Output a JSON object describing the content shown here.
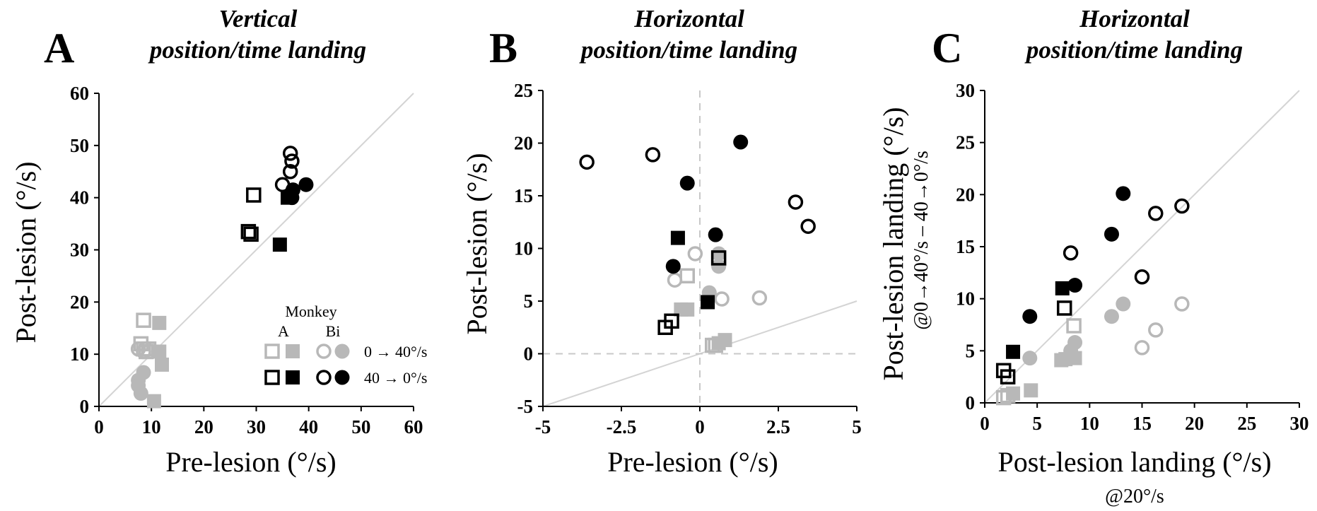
{
  "colors": {
    "gray": "#b8b8b8",
    "black": "#000000",
    "ref_line": "#d4d4d4",
    "zero_line": "#c8c8c8"
  },
  "legend": {
    "title": "Monkey",
    "col_a": "A",
    "col_bi": "Bi",
    "row_0_40": "0 → 40°/s",
    "row_40_0": "40 → 0°/s"
  },
  "chart_data": [
    {
      "type": "scatter",
      "panel": "A",
      "title_line1": "Vertical",
      "title_line2": "position/time landing",
      "xlabel": "Pre-lesion (°/s)",
      "ylabel": "Post-lesion (°/s)",
      "xlim": [
        0,
        60
      ],
      "ylim": [
        0,
        60
      ],
      "xticks": [
        0,
        10,
        20,
        30,
        40,
        50,
        60
      ],
      "yticks": [
        0,
        10,
        20,
        30,
        40,
        50,
        60
      ],
      "xtick_labels": [
        "0",
        "10",
        "20",
        "30",
        "40",
        "50",
        "60"
      ],
      "ytick_labels": [
        "0",
        "10",
        "20",
        "30",
        "40",
        "50",
        "60"
      ],
      "reference_line": "y = x",
      "series": [
        {
          "name": "Monkey A, 0 → 40°/s, open",
          "marker": "square",
          "fill": "open",
          "color": "gray",
          "points": [
            [
              8.5,
              16.5
            ],
            [
              8,
              12
            ],
            [
              8.5,
              11
            ],
            [
              9,
              10.5
            ],
            [
              9.5,
              11
            ]
          ]
        },
        {
          "name": "Monkey A, 0 → 40°/s, filled",
          "marker": "square",
          "fill": "filled",
          "color": "gray",
          "points": [
            [
              11.5,
              16
            ],
            [
              11.5,
              10.5
            ],
            [
              12,
              8
            ],
            [
              10.5,
              1
            ]
          ]
        },
        {
          "name": "Monkey Bi, 0 → 40°/s, open",
          "marker": "circle",
          "fill": "open",
          "color": "gray",
          "points": [
            [
              7.5,
              11
            ],
            [
              8.5,
              10.5
            ]
          ]
        },
        {
          "name": "Monkey Bi, 0 → 40°/s, filled",
          "marker": "circle",
          "fill": "filled",
          "color": "gray",
          "points": [
            [
              8.5,
              6.5
            ],
            [
              7.5,
              5
            ],
            [
              7.5,
              4
            ],
            [
              8,
              2.5
            ]
          ]
        },
        {
          "name": "Monkey A, 40 → 0°/s, open",
          "marker": "square",
          "fill": "open",
          "color": "black",
          "points": [
            [
              29.5,
              40.5
            ],
            [
              28.5,
              33.5
            ],
            [
              29,
              33
            ]
          ]
        },
        {
          "name": "Monkey A, 40 → 0°/s, filled",
          "marker": "square",
          "fill": "filled",
          "color": "black",
          "points": [
            [
              34.5,
              31
            ],
            [
              36,
              40
            ]
          ]
        },
        {
          "name": "Monkey Bi, 40 → 0°/s, open",
          "marker": "circle",
          "fill": "open",
          "color": "black",
          "points": [
            [
              36.5,
              48.5
            ],
            [
              36.8,
              47
            ],
            [
              36.5,
              45
            ],
            [
              35,
              42.5
            ]
          ]
        },
        {
          "name": "Monkey Bi, 40 → 0°/s, filled",
          "marker": "circle",
          "fill": "filled",
          "color": "black",
          "points": [
            [
              37,
              41.5
            ],
            [
              39.5,
              42.5
            ],
            [
              36.8,
              40
            ]
          ]
        }
      ]
    },
    {
      "type": "scatter",
      "panel": "B",
      "title_line1": "Horizontal",
      "title_line2": "position/time landing",
      "xlabel": "Pre-lesion (°/s)",
      "ylabel": "Post-lesion (°/s)",
      "xlim": [
        -5,
        5
      ],
      "ylim": [
        -5,
        25
      ],
      "xticks": [
        -5,
        -2.5,
        0,
        2.5,
        5
      ],
      "yticks": [
        -5,
        0,
        5,
        10,
        15,
        20,
        25
      ],
      "xtick_labels": [
        "-5",
        "-2.5",
        "0",
        "2.5",
        "5"
      ],
      "ytick_labels": [
        "-5",
        "0",
        "5",
        "10",
        "15",
        "20",
        "25"
      ],
      "reference_line": "y = x",
      "zero_lines": true,
      "series": [
        {
          "name": "Monkey A, 0 → 40°/s, open",
          "marker": "square",
          "fill": "open",
          "color": "gray",
          "points": [
            [
              -0.4,
              7.4
            ],
            [
              0.4,
              0.8
            ],
            [
              0.5,
              0.8
            ],
            [
              0.6,
              9
            ]
          ]
        },
        {
          "name": "Monkey A, 0 → 40°/s, filled",
          "marker": "square",
          "fill": "filled",
          "color": "gray",
          "points": [
            [
              -0.6,
              4.2
            ],
            [
              -0.4,
              4.2
            ],
            [
              0.8,
              1.3
            ],
            [
              0.6,
              1
            ]
          ]
        },
        {
          "name": "Monkey Bi, 0 → 40°/s, open",
          "marker": "circle",
          "fill": "open",
          "color": "gray",
          "points": [
            [
              -0.8,
              7
            ],
            [
              -0.15,
              9.5
            ],
            [
              0.7,
              5.2
            ],
            [
              1.9,
              5.3
            ]
          ]
        },
        {
          "name": "Monkey Bi, 0 → 40°/s, filled",
          "marker": "circle",
          "fill": "filled",
          "color": "gray",
          "points": [
            [
              0.3,
              5.8
            ],
            [
              0.6,
              8.3
            ],
            [
              0.6,
              9.5
            ]
          ]
        },
        {
          "name": "Monkey A, 40 → 0°/s, open",
          "marker": "square",
          "fill": "open",
          "color": "black",
          "points": [
            [
              -1.1,
              2.5
            ],
            [
              -0.9,
              3.1
            ],
            [
              0.6,
              9.1
            ]
          ]
        },
        {
          "name": "Monkey A, 40 → 0°/s, filled",
          "marker": "square",
          "fill": "filled",
          "color": "black",
          "points": [
            [
              -0.7,
              11
            ],
            [
              0.25,
              4.9
            ]
          ]
        },
        {
          "name": "Monkey Bi, 40 → 0°/s, open",
          "marker": "circle",
          "fill": "open",
          "color": "black",
          "points": [
            [
              -3.6,
              18.2
            ],
            [
              -1.5,
              18.9
            ],
            [
              3.05,
              14.4
            ],
            [
              3.45,
              12.1
            ]
          ]
        },
        {
          "name": "Monkey Bi, 40 → 0°/s, filled",
          "marker": "circle",
          "fill": "filled",
          "color": "black",
          "points": [
            [
              -0.4,
              16.2
            ],
            [
              1.3,
              20.1
            ],
            [
              0.5,
              11.3
            ],
            [
              -0.85,
              8.3
            ]
          ]
        }
      ]
    },
    {
      "type": "scatter",
      "panel": "C",
      "title_line1": "Horizontal",
      "title_line2": "position/time landing",
      "xlabel": "Post-lesion landing (°/s)",
      "xlabel_sub": "@20°/s",
      "ylabel": "Post-lesion landing (°/s)",
      "ylabel_sub": "@0→40°/s – 40→0°/s",
      "xlim": [
        0,
        30
      ],
      "ylim": [
        0,
        30
      ],
      "xticks": [
        0,
        5,
        10,
        15,
        20,
        25,
        30
      ],
      "yticks": [
        0,
        5,
        10,
        15,
        20,
        25,
        30
      ],
      "xtick_labels": [
        "0",
        "5",
        "10",
        "15",
        "20",
        "25",
        "30"
      ],
      "ytick_labels": [
        "0",
        "5",
        "10",
        "15",
        "20",
        "25",
        "30"
      ],
      "reference_line": "y = x",
      "series": [
        {
          "name": "Monkey A, 0 → 40°/s, open",
          "marker": "square",
          "fill": "open",
          "color": "gray",
          "points": [
            [
              1.8,
              0.5
            ],
            [
              2.2,
              0.7
            ],
            [
              8.5,
              7.4
            ]
          ]
        },
        {
          "name": "Monkey A, 0 → 40°/s, filled",
          "marker": "square",
          "fill": "filled",
          "color": "gray",
          "points": [
            [
              2.7,
              0.9
            ],
            [
              4.4,
              1.2
            ],
            [
              7.3,
              4.1
            ],
            [
              7.7,
              4.2
            ],
            [
              8.6,
              4.3
            ]
          ]
        },
        {
          "name": "Monkey Bi, 0 → 40°/s, open",
          "marker": "circle",
          "fill": "open",
          "color": "gray",
          "points": [
            [
              15,
              5.3
            ],
            [
              16.3,
              7
            ],
            [
              18.8,
              9.5
            ]
          ]
        },
        {
          "name": "Monkey Bi, 0 → 40°/s, filled",
          "marker": "circle",
          "fill": "filled",
          "color": "gray",
          "points": [
            [
              4.3,
              4.3
            ],
            [
              8.6,
              5.8
            ],
            [
              12.1,
              8.3
            ],
            [
              13.2,
              9.5
            ],
            [
              8.2,
              5
            ]
          ]
        },
        {
          "name": "Monkey A, 40 → 0°/s, open",
          "marker": "square",
          "fill": "open",
          "color": "black",
          "points": [
            [
              1.8,
              3.1
            ],
            [
              2.2,
              2.5
            ],
            [
              7.6,
              9.1
            ]
          ]
        },
        {
          "name": "Monkey A, 40 → 0°/s, filled",
          "marker": "square",
          "fill": "filled",
          "color": "black",
          "points": [
            [
              2.7,
              4.9
            ],
            [
              7.4,
              11
            ]
          ]
        },
        {
          "name": "Monkey Bi, 40 → 0°/s, open",
          "marker": "circle",
          "fill": "open",
          "color": "black",
          "points": [
            [
              8.2,
              14.4
            ],
            [
              15,
              12.1
            ],
            [
              16.3,
              18.2
            ],
            [
              18.8,
              18.9
            ]
          ]
        },
        {
          "name": "Monkey Bi, 40 → 0°/s, filled",
          "marker": "circle",
          "fill": "filled",
          "color": "black",
          "points": [
            [
              4.3,
              8.3
            ],
            [
              8.6,
              11.3
            ],
            [
              12.1,
              16.2
            ],
            [
              13.2,
              20.1
            ]
          ]
        }
      ]
    }
  ]
}
